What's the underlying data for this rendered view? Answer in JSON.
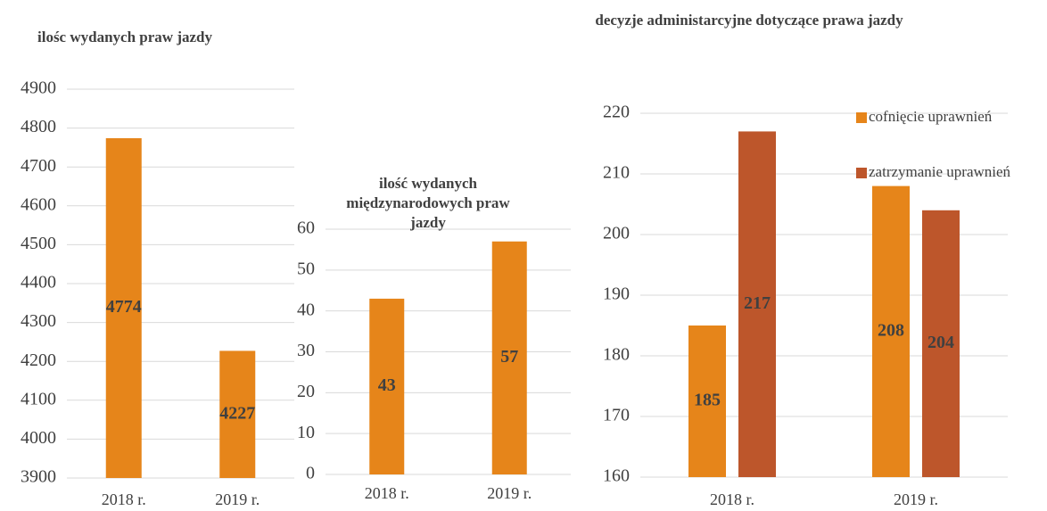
{
  "chart_data": [
    {
      "type": "bar",
      "title": "ilośc wydanych praw jazdy",
      "categories": [
        "2018 r.",
        "2019 r."
      ],
      "values": [
        4774,
        4227
      ],
      "color": "#e6851a",
      "ylim": [
        3900,
        4900
      ],
      "yticks": [
        3900,
        4000,
        4100,
        4200,
        4300,
        4400,
        4500,
        4600,
        4700,
        4800,
        4900
      ],
      "grid": true
    },
    {
      "type": "bar",
      "title": "ilość wydanych międzynarodowych praw jazdy",
      "categories": [
        "2018 r.",
        "2019 r."
      ],
      "values": [
        43,
        57
      ],
      "color": "#e6851a",
      "ylim": [
        0,
        60
      ],
      "yticks": [
        0,
        10,
        20,
        30,
        40,
        50,
        60
      ],
      "grid": true
    },
    {
      "type": "bar",
      "title": "decyzje administarcyjne dotyczące prawa jazdy",
      "categories": [
        "2018 r.",
        "2019 r."
      ],
      "series": [
        {
          "name": "cofnięcie uprawnień",
          "color": "#e6851a",
          "values": [
            185,
            208
          ]
        },
        {
          "name": "zatrzymanie uprawnień",
          "color": "#bd562b",
          "values": [
            217,
            204
          ]
        }
      ],
      "ylim": [
        160,
        220
      ],
      "yticks": [
        160,
        170,
        180,
        190,
        200,
        210,
        220
      ],
      "grid": true
    }
  ]
}
